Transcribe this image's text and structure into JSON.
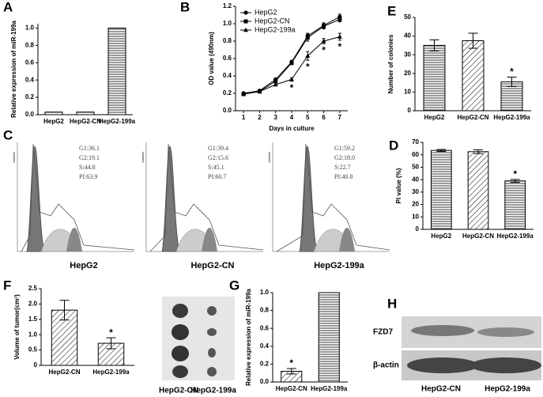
{
  "chart_data": [
    {
      "type": "bar",
      "label": "A",
      "ylabel": "Relative expression of miR-199a",
      "categories": [
        "HepG2",
        "HepG2-CN",
        "HepG2-199a"
      ],
      "values": [
        0.03,
        0.03,
        1.0
      ],
      "patterns": [
        "horizontal",
        "horizontal",
        "horizontal"
      ],
      "ylim": [
        0,
        1.05
      ],
      "yticks": [
        {
          "value": 0,
          "label": "0.0"
        },
        0.2,
        0.4,
        0.6,
        0.8,
        {
          "value": 1,
          "label": "1.0"
        }
      ]
    },
    {
      "type": "line",
      "label": "B",
      "xlabel": "Days in culture",
      "ylabel": "OD value (490nm)",
      "x": [
        1,
        2,
        3,
        4,
        5,
        6,
        7
      ],
      "xlim": [
        0.5,
        7.5
      ],
      "xticks": [
        1,
        2,
        3,
        4,
        5,
        6,
        7
      ],
      "ylim": [
        0,
        1.2
      ],
      "yticks": [
        {
          "value": 0,
          "label": "0.0"
        },
        0.2,
        0.4,
        0.6,
        0.8,
        {
          "value": 1,
          "label": "1.0"
        },
        1.2
      ],
      "series": [
        {
          "name": "HepG2",
          "color": "#000000",
          "marker": "circle",
          "values": [
            0.2,
            0.23,
            0.36,
            0.56,
            0.86,
            0.98,
            1.08
          ],
          "errors": [
            0.01,
            0.01,
            0.01,
            0.02,
            0.03,
            0.03,
            0.03
          ]
        },
        {
          "name": "HepG2-CN",
          "color": "#000000",
          "marker": "square",
          "values": [
            0.19,
            0.22,
            0.34,
            0.55,
            0.84,
            0.97,
            1.05
          ],
          "errors": [
            0.01,
            0.01,
            0.01,
            0.02,
            0.04,
            0.03,
            0.03
          ]
        },
        {
          "name": "HepG2-199a",
          "color": "#000000",
          "marker": "triangle",
          "values": [
            0.2,
            0.22,
            0.3,
            0.36,
            0.63,
            0.8,
            0.85
          ],
          "errors": [
            0.01,
            0.01,
            0.01,
            0.02,
            0.05,
            0.03,
            0.04
          ],
          "significance": [
            null,
            null,
            null,
            "*",
            "*",
            "*",
            "*"
          ]
        }
      ]
    },
    {
      "type": "bar",
      "label": "E",
      "ylabel": "Number of colonies",
      "categories": [
        "HepG2",
        "HepG2-CN",
        "HepG2-199a"
      ],
      "values": [
        35,
        37.5,
        15.5
      ],
      "errors": [
        3,
        4,
        2.5
      ],
      "significance": [
        null,
        null,
        "*"
      ],
      "patterns": [
        "horizontal",
        "diagonal",
        "horizontal"
      ],
      "ylim": [
        0,
        50
      ],
      "yticks": [
        0,
        10,
        20,
        30,
        40,
        50
      ]
    },
    {
      "type": "bar",
      "label": "D",
      "ylabel": "PI value (%)",
      "categories": [
        "HepG2",
        "HepG2-CN",
        "HepG2-199a"
      ],
      "values": [
        63.5,
        62.5,
        39
      ],
      "errors": [
        0.8,
        1.5,
        1.2
      ],
      "significance": [
        null,
        null,
        "*"
      ],
      "patterns": [
        "horizontal",
        "diagonal",
        "horizontal"
      ],
      "ylim": [
        0,
        70
      ],
      "yticks": [
        0,
        10,
        20,
        30,
        40,
        50,
        60,
        70
      ]
    },
    {
      "type": "bar",
      "label": "F",
      "ylabel": "Volume of tumor(cm³)",
      "categories": [
        "HepG2-CN",
        "HepG2-199a"
      ],
      "values": [
        1.8,
        0.72
      ],
      "errors": [
        0.32,
        0.18
      ],
      "significance": [
        null,
        "*"
      ],
      "patterns": [
        "diagonal",
        "diagonal"
      ],
      "ylim": [
        0,
        2.5
      ],
      "yticks": [
        0,
        0.5,
        {
          "value": 1,
          "label": "1.0"
        },
        1.5,
        {
          "value": 2,
          "label": "2.0"
        },
        2.5
      ]
    },
    {
      "type": "bar",
      "label": "G",
      "ylabel": "Relative expression of miR-199a",
      "categories": [
        "HepG2-CN",
        "HepG2-199a"
      ],
      "values": [
        0.12,
        1.0
      ],
      "errors": [
        0.03,
        0
      ],
      "significance": [
        "*",
        null
      ],
      "patterns": [
        "diagonal",
        "horizontal"
      ],
      "ylim": [
        0,
        1.0
      ],
      "yticks": [
        {
          "value": 0,
          "label": "0.0"
        },
        0.2,
        0.4,
        0.6,
        0.8,
        {
          "value": 1,
          "label": "1.0"
        }
      ]
    }
  ],
  "flow_cytometry": {
    "label": "C",
    "axis_label": "Number",
    "samples": [
      {
        "name": "HepG2",
        "stats": [
          "G1:36.1",
          "G2:19.1",
          "S:44.8",
          "PI:63.9"
        ]
      },
      {
        "name": "HepG2-CN",
        "stats": [
          "G1:39.4",
          "G2:15.6",
          "S:45.1",
          "PI:60.7"
        ]
      },
      {
        "name": "HepG2-199a",
        "stats": [
          "G1:59.2",
          "G2:18.0",
          "S:22.7",
          "PI:40.8"
        ]
      }
    ]
  },
  "xenograft": {
    "columns": [
      "HepG2-CN",
      "HepG2-199a"
    ]
  },
  "western_blot": {
    "label": "H",
    "rows": [
      "FZD7",
      "β-actin"
    ],
    "columns": [
      "HepG2-CN",
      "HepG2-199a"
    ]
  }
}
